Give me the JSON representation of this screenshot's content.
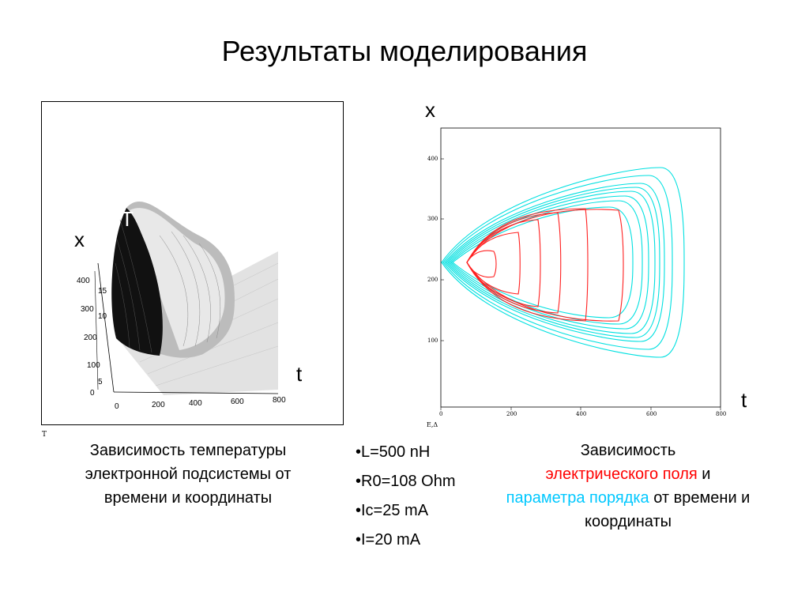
{
  "title": "Результаты моделирования",
  "left_plot": {
    "x_axis_label": "x",
    "t_axis_label": "t",
    "T_axis_label": "T",
    "t_ticks": [
      "0",
      "200",
      "400",
      "600",
      "800"
    ],
    "x_ticks": [
      "0",
      "100",
      "200",
      "300",
      "400"
    ],
    "T_ticks": [
      "5",
      "10",
      "15"
    ],
    "bottom_label": "T"
  },
  "right_plot": {
    "x_axis_label": "x",
    "t_axis_label": "t",
    "t_ticks": [
      "0",
      "200",
      "400",
      "600",
      "800"
    ],
    "x_ticks": [
      "100",
      "200",
      "300",
      "400"
    ],
    "bottom_label": "E,Δ",
    "colors": {
      "field": "#ff0000",
      "order_parameter": "#00e5e5"
    }
  },
  "left_caption": "Зависимость температуры электронной подсистемы от времени и координаты",
  "params": [
    "•L=500 nH",
    "•R0=108 Ohm",
    "•Ic=25 mA",
    "•I=20 mA"
  ],
  "right_caption": {
    "prefix": "Зависимость",
    "red_text": "электрического поля",
    "middle": "и",
    "cyan_text": "параметра порядка",
    "suffix": "от времени и координаты"
  }
}
